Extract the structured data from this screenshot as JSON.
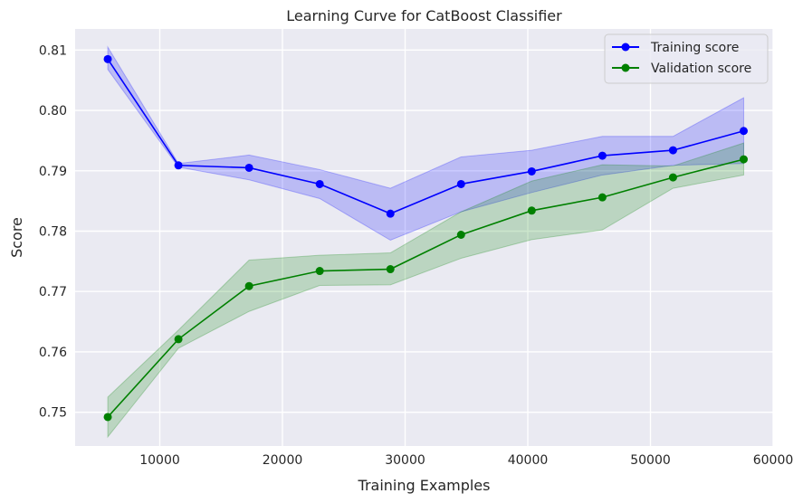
{
  "chart_data": {
    "type": "line",
    "title": "Learning Curve for CatBoost Classifier",
    "xlabel": "Training Examples",
    "ylabel": "Score",
    "xlim": [
      3100,
      60000
    ],
    "ylim": [
      0.7444,
      0.8135
    ],
    "x_ticks": [
      10000,
      20000,
      30000,
      40000,
      50000,
      60000
    ],
    "y_ticks": [
      0.75,
      0.76,
      0.77,
      0.78,
      0.79,
      0.8,
      0.81
    ],
    "x_tick_labels": [
      "10000",
      "20000",
      "30000",
      "40000",
      "50000",
      "60000"
    ],
    "y_tick_labels": [
      "0.75",
      "0.76",
      "0.77",
      "0.78",
      "0.79",
      "0.80",
      "0.81"
    ],
    "grid": true,
    "legend_position": "top-right",
    "x": [
      5760,
      11520,
      17280,
      23040,
      28800,
      34560,
      40320,
      46080,
      51840,
      57600
    ],
    "series": [
      {
        "name": "Training score",
        "color": "#0000ff",
        "band_color": "#0000ff",
        "values": [
          0.8085,
          0.7909,
          0.7905,
          0.7878,
          0.7829,
          0.7878,
          0.7899,
          0.7925,
          0.7934,
          0.7966
        ],
        "upper": [
          0.8105,
          0.7912,
          0.7926,
          0.7902,
          0.7871,
          0.7923,
          0.7934,
          0.7957,
          0.7957,
          0.8021
        ],
        "lower": [
          0.8068,
          0.7906,
          0.7885,
          0.7854,
          0.7785,
          0.7832,
          0.7864,
          0.7893,
          0.7909,
          0.7912
        ]
      },
      {
        "name": "Validation score",
        "color": "#008000",
        "band_color": "#008000",
        "values": [
          0.7492,
          0.7621,
          0.7709,
          0.7734,
          0.7737,
          0.7794,
          0.7834,
          0.7856,
          0.7889,
          0.7919
        ],
        "upper": [
          0.7525,
          0.7636,
          0.7752,
          0.776,
          0.7764,
          0.7832,
          0.7883,
          0.791,
          0.7908,
          0.7946
        ],
        "lower": [
          0.7459,
          0.7606,
          0.7667,
          0.771,
          0.7711,
          0.7755,
          0.7786,
          0.7802,
          0.7871,
          0.7893
        ]
      }
    ]
  }
}
